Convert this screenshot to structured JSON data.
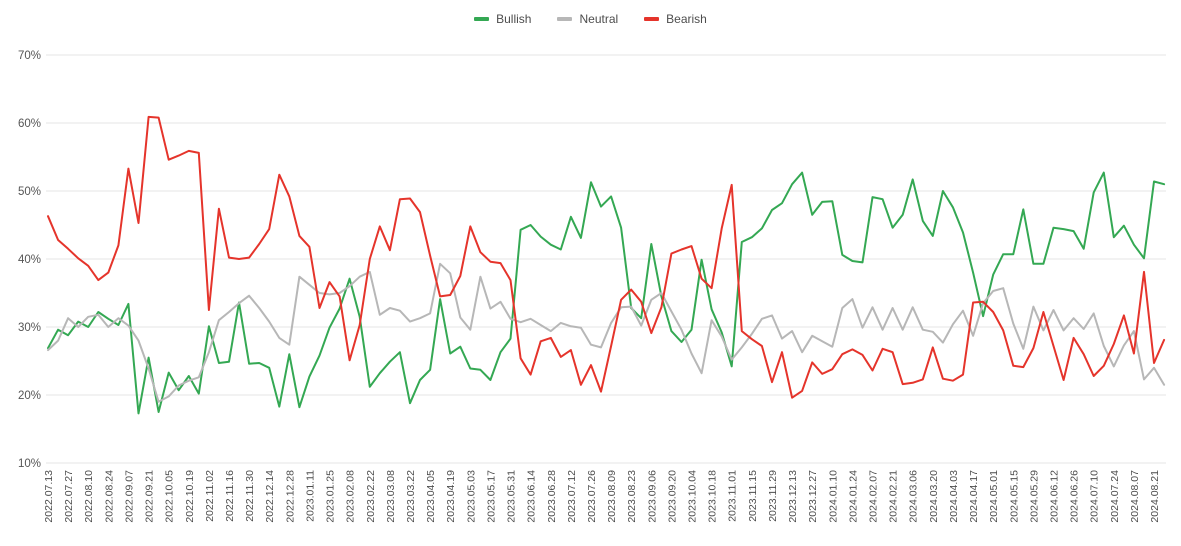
{
  "page": {
    "background": "#ffffff"
  },
  "legend": {
    "items": [
      {
        "label": "Bullish",
        "color": "#34a853"
      },
      {
        "label": "Neutral",
        "color": "#b7b7b7"
      },
      {
        "label": "Bearish",
        "color": "#e5342b"
      }
    ]
  },
  "chart_data": {
    "type": "line",
    "title": "",
    "xlabel": "",
    "ylabel": "",
    "ylim": [
      10,
      70
    ],
    "yticks": [
      "10%",
      "20%",
      "30%",
      "40%",
      "50%",
      "60%",
      "70%"
    ],
    "ytick_values": [
      10,
      20,
      30,
      40,
      50,
      60,
      70
    ],
    "grid": true,
    "legend_position": "top-center",
    "x_tick_every": 2,
    "x": [
      "2022.07.13",
      "2022.07.20",
      "2022.07.27",
      "2022.08.03",
      "2022.08.10",
      "2022.08.17",
      "2022.08.24",
      "2022.08.31",
      "2022.09.07",
      "2022.09.14",
      "2022.09.21",
      "2022.09.28",
      "2022.10.05",
      "2022.10.12",
      "2022.10.19",
      "2022.10.26",
      "2022.11.02",
      "2022.11.09",
      "2022.11.16",
      "2022.11.23",
      "2022.11.30",
      "2022.12.07",
      "2022.12.14",
      "2022.12.21",
      "2022.12.28",
      "2023.01.04",
      "2023.01.11",
      "2023.01.18",
      "2023.01.25",
      "2023.02.01",
      "2023.02.08",
      "2023.02.15",
      "2023.02.22",
      "2023.03.01",
      "2023.03.08",
      "2023.03.15",
      "2023.03.22",
      "2023.03.29",
      "2023.04.05",
      "2023.04.12",
      "2023.04.19",
      "2023.04.26",
      "2023.05.03",
      "2023.05.10",
      "2023.05.17",
      "2023.05.24",
      "2023.05.31",
      "2023.06.07",
      "2023.06.14",
      "2023.06.21",
      "2023.06.28",
      "2023.07.05",
      "2023.07.12",
      "2023.07.19",
      "2023.07.26",
      "2023.08.02",
      "2023.08.09",
      "2023.08.16",
      "2023.08.23",
      "2023.08.30",
      "2023.09.06",
      "2023.09.13",
      "2023.09.20",
      "2023.09.27",
      "2023.10.04",
      "2023.10.11",
      "2023.10.18",
      "2023.10.25",
      "2023.11.01",
      "2023.11.08",
      "2023.11.15",
      "2023.11.22",
      "2023.11.29",
      "2023.12.06",
      "2023.12.13",
      "2023.12.20",
      "2023.12.27",
      "2024.01.03",
      "2024.01.10",
      "2024.01.17",
      "2024.01.24",
      "2024.01.31",
      "2024.02.07",
      "2024.02.14",
      "2024.02.21",
      "2024.02.28",
      "2024.03.06",
      "2024.03.13",
      "2024.03.20",
      "2024.03.27",
      "2024.04.03",
      "2024.04.10",
      "2024.04.17",
      "2024.04.24",
      "2024.05.01",
      "2024.05.08",
      "2024.05.15",
      "2024.05.22",
      "2024.05.29",
      "2024.06.05",
      "2024.06.12",
      "2024.06.19",
      "2024.06.26",
      "2024.07.03",
      "2024.07.10",
      "2024.07.17",
      "2024.07.24",
      "2024.07.31",
      "2024.08.07",
      "2024.08.14",
      "2024.08.21",
      "2024.08.28"
    ],
    "series": [
      {
        "name": "Bullish",
        "color": "#34a853",
        "values": [
          26.9,
          29.6,
          28.8,
          30.8,
          30.0,
          32.2,
          31.2,
          30.3,
          33.4,
          17.3,
          25.5,
          17.5,
          23.3,
          20.7,
          22.8,
          20.2,
          30.1,
          24.7,
          24.9,
          33.6,
          24.6,
          24.7,
          24.0,
          18.3,
          26.0,
          18.2,
          22.7,
          25.8,
          29.9,
          32.7,
          37.1,
          31.5,
          21.2,
          23.2,
          24.9,
          26.3,
          18.8,
          22.2,
          23.7,
          34.1,
          26.1,
          27.1,
          23.9,
          23.7,
          22.2,
          26.3,
          28.3,
          44.3,
          45.0,
          43.3,
          42.1,
          41.4,
          46.2,
          43.1,
          51.3,
          47.7,
          49.2,
          44.6,
          32.8,
          31.3,
          42.2,
          34.5,
          29.4,
          27.8,
          29.6,
          39.9,
          32.6,
          29.2,
          24.2,
          42.5,
          43.2,
          44.5,
          47.2,
          48.2,
          51.0,
          52.7,
          46.5,
          48.4,
          48.5,
          40.6,
          39.7,
          39.5,
          49.1,
          48.8,
          44.6,
          46.5,
          51.7,
          45.6,
          43.4,
          50.0,
          47.6,
          43.9,
          38.0,
          31.6,
          37.7,
          40.7,
          40.7,
          47.3,
          39.3,
          39.3,
          44.6,
          44.4,
          44.1,
          41.5,
          49.8,
          52.7,
          43.2,
          44.9,
          42.1,
          40.1,
          51.4,
          51.0
        ]
      },
      {
        "name": "Neutral",
        "color": "#b7b7b7",
        "values": [
          26.6,
          28.0,
          31.3,
          30.0,
          31.5,
          31.8,
          30.0,
          31.3,
          30.2,
          28.0,
          23.9,
          19.0,
          19.8,
          21.4,
          22.1,
          22.6,
          26.3,
          31.0,
          32.2,
          33.5,
          34.6,
          32.8,
          30.8,
          28.4,
          27.4,
          37.4,
          36.2,
          35.0,
          34.8,
          35.0,
          36.0,
          37.4,
          38.1,
          31.8,
          32.8,
          32.4,
          30.8,
          31.3,
          32.0,
          39.3,
          37.9,
          31.4,
          29.6,
          37.4,
          32.7,
          33.7,
          31.2,
          30.7,
          31.2,
          30.3,
          29.4,
          30.6,
          30.1,
          29.9,
          27.4,
          27.0,
          30.6,
          32.9,
          33.0,
          30.2,
          34.0,
          35.0,
          32.3,
          29.6,
          26.1,
          23.2,
          31.0,
          28.6,
          25.2,
          27.0,
          29.0,
          31.2,
          31.7,
          28.3,
          29.4,
          26.3,
          28.7,
          27.9,
          27.1,
          32.8,
          34.1,
          29.9,
          32.9,
          29.6,
          32.8,
          29.6,
          32.9,
          29.6,
          29.3,
          27.7,
          30.4,
          32.4,
          28.7,
          33.5,
          35.3,
          35.7,
          30.5,
          26.8,
          33.0,
          29.5,
          32.5,
          29.5,
          31.3,
          29.7,
          32.0,
          27.2,
          24.2,
          27.3,
          29.4,
          22.3,
          24.0,
          21.5
        ]
      },
      {
        "name": "Bearish",
        "color": "#e5342b",
        "values": [
          46.3,
          42.8,
          41.5,
          40.1,
          39.0,
          36.9,
          38.0,
          42.0,
          53.3,
          45.3,
          60.9,
          60.8,
          54.6,
          55.2,
          55.9,
          55.6,
          32.5,
          47.4,
          40.2,
          40.0,
          40.2,
          42.2,
          44.4,
          52.4,
          49.2,
          43.4,
          41.8,
          32.8,
          36.6,
          34.5,
          25.1,
          30.3,
          40.0,
          44.8,
          41.3,
          48.8,
          48.9,
          46.9,
          40.5,
          34.5,
          34.7,
          37.5,
          44.8,
          41.0,
          39.6,
          39.4,
          36.9,
          25.4,
          23.0,
          27.9,
          28.4,
          25.6,
          26.6,
          21.5,
          24.4,
          20.5,
          27.2,
          34.0,
          35.5,
          33.7,
          29.1,
          32.9,
          40.8,
          41.4,
          41.9,
          37.1,
          35.7,
          44.5,
          50.9,
          29.4,
          28.2,
          27.2,
          21.9,
          26.3,
          19.6,
          20.6,
          24.8,
          23.1,
          23.8,
          26.0,
          26.7,
          25.9,
          23.6,
          26.8,
          26.3,
          21.6,
          21.8,
          22.3,
          27.0,
          22.4,
          22.1,
          23.0,
          33.6,
          33.7,
          32.2,
          29.5,
          24.3,
          24.1,
          26.9,
          32.2,
          27.2,
          22.2,
          28.4,
          26.0,
          22.8,
          24.3,
          27.5,
          31.7,
          26.1,
          38.1,
          24.7,
          28.1
        ]
      }
    ]
  }
}
